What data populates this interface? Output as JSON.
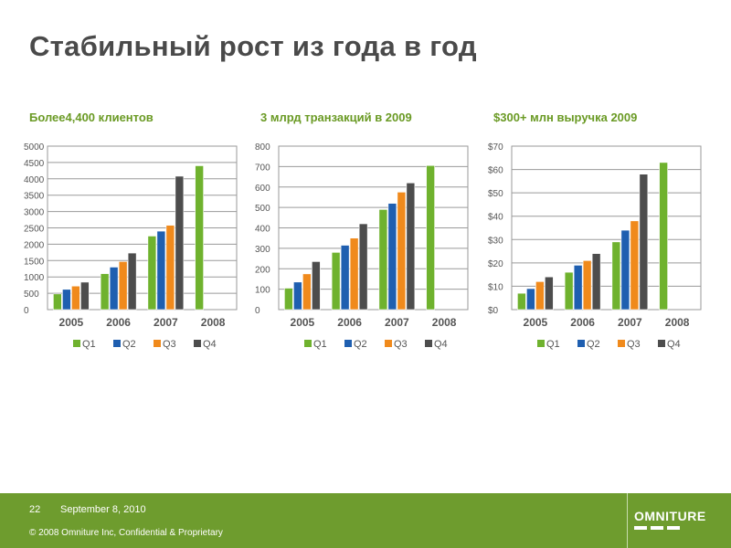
{
  "slide": {
    "title": "Стабильный рост из года в год",
    "footer": {
      "page_number": "22",
      "date": "September 8, 2010",
      "copyright": "© 2008 Omniture Inc, Confidential & Proprietary",
      "logo_text": "OMNITURE"
    }
  },
  "colors": {
    "Q1": "#6fb22e",
    "Q2": "#1f5fb0",
    "Q3": "#f08a1c",
    "Q4": "#4d4d4d",
    "accent_green": "#6a9a24",
    "footer_bg": "#6e9c2e"
  },
  "chart_data": [
    {
      "type": "bar",
      "title": "Более4,400  клиентов",
      "categories": [
        "2005",
        "2006",
        "2007",
        "2008"
      ],
      "ylim": [
        0,
        5000
      ],
      "yticks": [
        "0",
        "500",
        "1000",
        "1500",
        "2000",
        "2500",
        "3000",
        "3500",
        "4000",
        "4500",
        "5000"
      ],
      "ytick_values": [
        0,
        500,
        1000,
        1500,
        2000,
        2500,
        3000,
        3500,
        4000,
        4500,
        5000
      ],
      "grid": true,
      "legend_position": "bottom",
      "series": [
        {
          "name": "Q1",
          "values": [
            480,
            1100,
            2250,
            4400
          ]
        },
        {
          "name": "Q2",
          "values": [
            620,
            1300,
            2400,
            null
          ]
        },
        {
          "name": "Q3",
          "values": [
            720,
            1470,
            2580,
            null
          ]
        },
        {
          "name": "Q4",
          "values": [
            840,
            1730,
            4080,
            null
          ]
        }
      ]
    },
    {
      "type": "bar",
      "title": "3 млрд транзакций в 2009",
      "categories": [
        "2005",
        "2006",
        "2007",
        "2008"
      ],
      "ylim": [
        0,
        800
      ],
      "yticks": [
        "0",
        "100",
        "200",
        "300",
        "400",
        "500",
        "600",
        "700",
        "800"
      ],
      "ytick_values": [
        0,
        100,
        200,
        300,
        400,
        500,
        600,
        700,
        800
      ],
      "grid": true,
      "legend_position": "bottom",
      "series": [
        {
          "name": "Q1",
          "values": [
            105,
            280,
            490,
            705
          ]
        },
        {
          "name": "Q2",
          "values": [
            135,
            315,
            520,
            null
          ]
        },
        {
          "name": "Q3",
          "values": [
            175,
            350,
            575,
            null
          ]
        },
        {
          "name": "Q4",
          "values": [
            235,
            420,
            620,
            null
          ]
        }
      ]
    },
    {
      "type": "bar",
      "title": "$300+ млн выручка 2009",
      "categories": [
        "2005",
        "2006",
        "2007",
        "2008"
      ],
      "ylim": [
        0,
        70
      ],
      "yticks": [
        "$0",
        "$10",
        "$20",
        "$30",
        "$40",
        "$50",
        "$60",
        "$70"
      ],
      "ytick_values": [
        0,
        10,
        20,
        30,
        40,
        50,
        60,
        70
      ],
      "grid": true,
      "legend_position": "bottom",
      "series": [
        {
          "name": "Q1",
          "values": [
            7,
            16,
            29,
            63
          ]
        },
        {
          "name": "Q2",
          "values": [
            9,
            19,
            34,
            null
          ]
        },
        {
          "name": "Q3",
          "values": [
            12,
            21,
            38,
            null
          ]
        },
        {
          "name": "Q4",
          "values": [
            14,
            24,
            58,
            null
          ]
        }
      ]
    }
  ]
}
